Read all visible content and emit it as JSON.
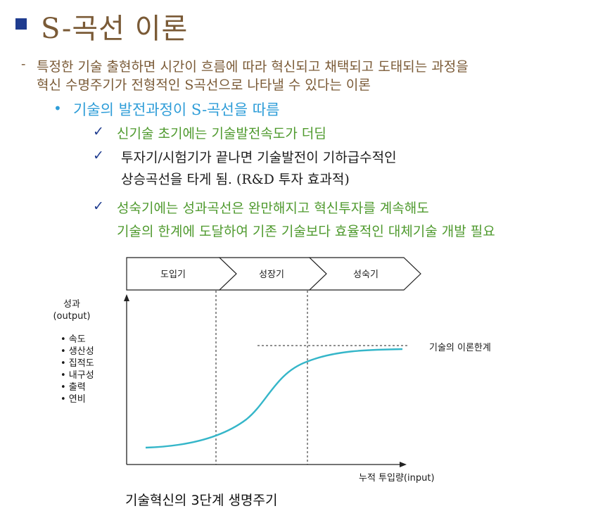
{
  "slide": {
    "title": "S-곡선 이론",
    "desc_dash": "-",
    "desc_line1": "특정한 기술 출현하면 시간이 흐름에 따라 혁신되고 채택되고 도태되는 과정을",
    "desc_line2": "혁신 수명주기가 전형적인 S곡선으로 나타낼 수 있다는 이론",
    "point": "기술의 발전과정이 S-곡선을 따름",
    "sub_points": [
      "신기술 초기에는 기술발전속도가 더딤",
      "투자기/시험기가 끝나면 기술발전이 기하급수적인",
      "상승곡선을 타게 됨. (R&D 투자 효과적)",
      "성숙기에는 성과곡선은 완만해지고 혁신투자를 계속해도",
      "기술의 한계에 도달하여 기존 기술보다 효율적인 대체기술 개발 필요"
    ],
    "colors": {
      "title": "#7a5a36",
      "bullet": "#1f3c8f",
      "point": "#2e9dd8",
      "green_text": "#4f9a2e",
      "curve": "#35b6c9"
    }
  },
  "diagram": {
    "stages": [
      "도입기",
      "성장기",
      "성숙기"
    ],
    "y_label_line1": "성과",
    "y_label_line2": "(output)",
    "metrics": [
      "• 속도",
      "• 생산성",
      "• 집적도",
      "• 내구성",
      "• 출력",
      "• 연비"
    ],
    "x_label": "누적 투입량(input)",
    "limit_label": "기술의 이론한계",
    "caption": "기술혁신의 3단계 생명주기"
  }
}
